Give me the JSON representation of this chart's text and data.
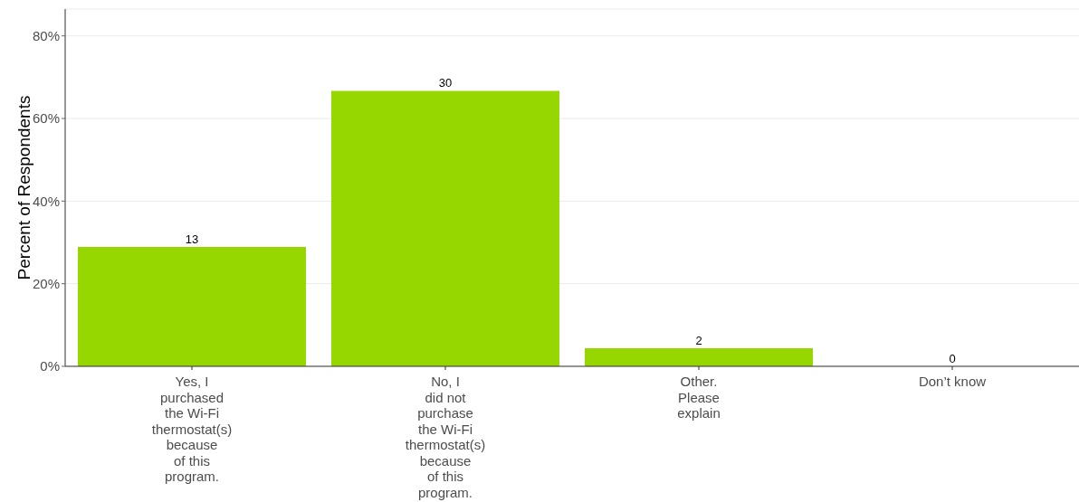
{
  "chart_data": {
    "type": "bar",
    "ylabel": "Percent of Respondents",
    "categories": [
      "Yes, I\npurchased\nthe Wi-Fi\nthermostat(s)\nbecause\nof this\nprogram.",
      "No, I\ndid not\npurchase\nthe Wi-Fi\nthermostat(s)\nbecause\nof this\nprogram.",
      "Other.\nPlease\nexplain",
      "Don’t know"
    ],
    "values": [
      28.9,
      66.7,
      4.4,
      0
    ],
    "annotations": [
      {
        "text": "13",
        "x": "Yes, I\npurchased\nthe Wi-Fi\nthermostat(s)\nbecause\nof this\nprogram.",
        "y": 28.9
      },
      {
        "text": "30",
        "x": "No, I\ndid not\npurchase\nthe Wi-Fi\nthermostat(s)\nbecause\nof this\nprogram.",
        "y": 66.7
      },
      {
        "text": "2",
        "x": "Other.\nPlease\nexplain",
        "y": 4.4
      },
      {
        "text": "0",
        "x": "Don’t know",
        "y": 0
      }
    ],
    "color": "#97d700",
    "ylim": [
      0,
      86.5
    ],
    "yticks": [
      {
        "value": 0,
        "label": "0%"
      },
      {
        "value": 20,
        "label": "20%"
      },
      {
        "value": 40,
        "label": "40%"
      },
      {
        "value": 60,
        "label": "60%"
      },
      {
        "value": 80,
        "label": "80%"
      }
    ],
    "grid": "y"
  }
}
